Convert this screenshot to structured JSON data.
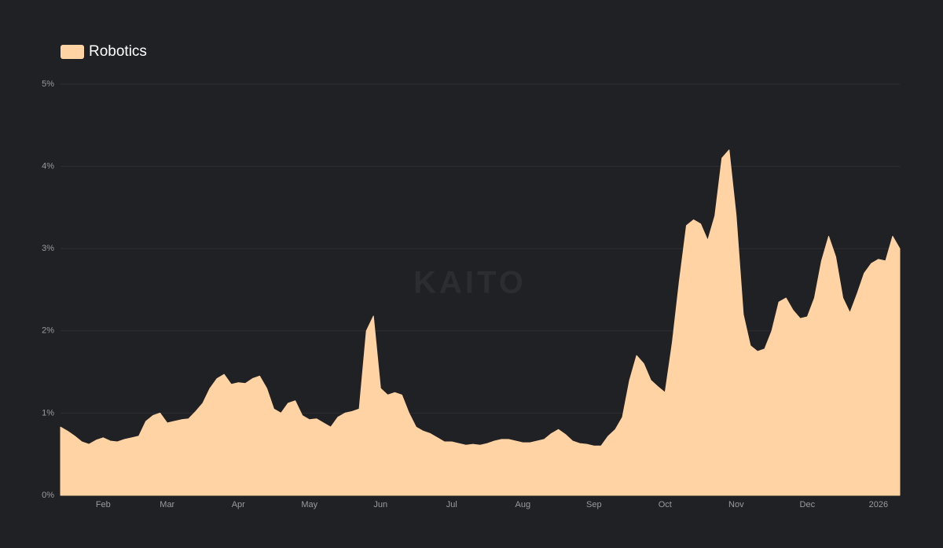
{
  "chart_data": {
    "type": "area",
    "watermark": "KAITO",
    "categories": [
      null,
      null,
      null,
      null,
      null,
      null,
      "Feb",
      null,
      null,
      null,
      null,
      null,
      null,
      null,
      null,
      "Mar",
      null,
      null,
      null,
      null,
      null,
      null,
      null,
      null,
      null,
      "Apr",
      null,
      null,
      null,
      null,
      null,
      null,
      null,
      null,
      null,
      "May",
      null,
      null,
      null,
      null,
      null,
      null,
      null,
      null,
      null,
      "Jun",
      null,
      null,
      null,
      null,
      null,
      null,
      null,
      null,
      null,
      "Jul",
      null,
      null,
      null,
      null,
      null,
      null,
      null,
      null,
      null,
      "Aug",
      null,
      null,
      null,
      null,
      null,
      null,
      null,
      null,
      null,
      "Sep",
      null,
      null,
      null,
      null,
      null,
      null,
      null,
      null,
      null,
      "Oct",
      null,
      null,
      null,
      null,
      null,
      null,
      null,
      null,
      null,
      "Nov",
      null,
      null,
      null,
      null,
      null,
      null,
      null,
      null,
      null,
      "Dec",
      null,
      null,
      null,
      null,
      null,
      null,
      null,
      null,
      null,
      "2026",
      null,
      null,
      null
    ],
    "series": [
      {
        "name": "Robotics",
        "color": "#ffd3a3",
        "values": [
          0.83,
          0.78,
          0.72,
          0.65,
          0.62,
          0.67,
          0.7,
          0.66,
          0.65,
          0.68,
          0.7,
          0.72,
          0.9,
          0.97,
          1.0,
          0.88,
          0.9,
          0.92,
          0.93,
          1.02,
          1.12,
          1.3,
          1.42,
          1.47,
          1.35,
          1.37,
          1.36,
          1.42,
          1.45,
          1.3,
          1.05,
          1.0,
          1.12,
          1.15,
          0.97,
          0.92,
          0.93,
          0.88,
          0.83,
          0.95,
          1.0,
          1.02,
          1.05,
          2.0,
          2.18,
          1.3,
          1.22,
          1.25,
          1.22,
          1.0,
          0.83,
          0.78,
          0.75,
          0.7,
          0.65,
          0.65,
          0.63,
          0.61,
          0.62,
          0.61,
          0.63,
          0.66,
          0.68,
          0.68,
          0.66,
          0.64,
          0.64,
          0.66,
          0.68,
          0.75,
          0.8,
          0.74,
          0.66,
          0.63,
          0.62,
          0.6,
          0.6,
          0.72,
          0.8,
          0.95,
          1.4,
          1.7,
          1.6,
          1.4,
          1.32,
          1.25,
          1.85,
          2.6,
          3.28,
          3.35,
          3.3,
          3.1,
          3.4,
          4.1,
          4.2,
          3.4,
          2.2,
          1.82,
          1.75,
          1.78,
          2.0,
          2.35,
          2.4,
          2.25,
          2.15,
          2.17,
          2.4,
          2.85,
          3.15,
          2.9,
          2.4,
          2.22,
          2.45,
          2.7,
          2.82,
          2.87,
          2.85,
          3.15,
          3.0
        ]
      }
    ],
    "ylim": [
      0,
      5
    ],
    "yticks": [
      {
        "value": 0,
        "label": "0%"
      },
      {
        "value": 1,
        "label": "1%"
      },
      {
        "value": 2,
        "label": "2%"
      },
      {
        "value": 3,
        "label": "3%"
      },
      {
        "value": 4,
        "label": "4%"
      },
      {
        "value": 5,
        "label": "5%"
      }
    ],
    "grid": true,
    "legend": "top-left"
  }
}
